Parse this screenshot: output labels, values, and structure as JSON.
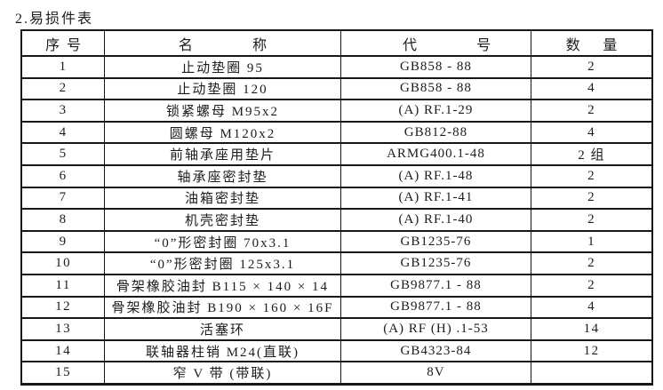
{
  "page": {
    "title": "2.易损件表"
  },
  "table": {
    "columns": [
      "序号",
      "名称",
      "代号",
      "数量"
    ],
    "rows": [
      {
        "no": "1",
        "name": "止动垫圈 95",
        "code": "GB858 - 88",
        "qty": "2"
      },
      {
        "no": "2",
        "name": "止动垫圈 120",
        "code": "GB858 - 88",
        "qty": "4"
      },
      {
        "no": "3",
        "name": "锁紧螺母 M95x2",
        "code": "(A) RF.1-29",
        "qty": "2"
      },
      {
        "no": "4",
        "name": "圆螺母 M120x2",
        "code": "GB812-88",
        "qty": "4"
      },
      {
        "no": "5",
        "name": "前轴承座用垫片",
        "code": "ARMG400.1-48",
        "qty": "2 组"
      },
      {
        "no": "6",
        "name": "轴承座密封垫",
        "code": "(A) RF.1-48",
        "qty": "2"
      },
      {
        "no": "7",
        "name": "油箱密封垫",
        "code": "(A) RF.1-41",
        "qty": "2"
      },
      {
        "no": "8",
        "name": "机壳密封垫",
        "code": "(A) RF.1-40",
        "qty": "2"
      },
      {
        "no": "9",
        "name": "“0”形密封圈 70x3.1",
        "code": "GB1235-76",
        "qty": "1"
      },
      {
        "no": "10",
        "name": "“0”形密封圈 125x3.1",
        "code": "GB1235-76",
        "qty": "2"
      },
      {
        "no": "11",
        "name": "骨架橡胶油封 B115 × 140 × 14",
        "code": "GB9877.1 - 88",
        "qty": "2"
      },
      {
        "no": "12",
        "name": "骨架橡胶油封 B190 × 160 × 16F",
        "code": "GB9877.1 - 88",
        "qty": "4"
      },
      {
        "no": "13",
        "name": "活塞环",
        "code": "(A) RF (H) .1-53",
        "qty": "14"
      },
      {
        "no": "14",
        "name": "联轴器柱销 M24(直联)",
        "code": "GB4323-84",
        "qty": "12"
      },
      {
        "no": "15",
        "name": "窄 V 带 (带联)",
        "code": "8V",
        "qty": ""
      }
    ]
  },
  "colors": {
    "text": "#1c1c1c",
    "border": "#161616",
    "background": "#ffffff"
  }
}
